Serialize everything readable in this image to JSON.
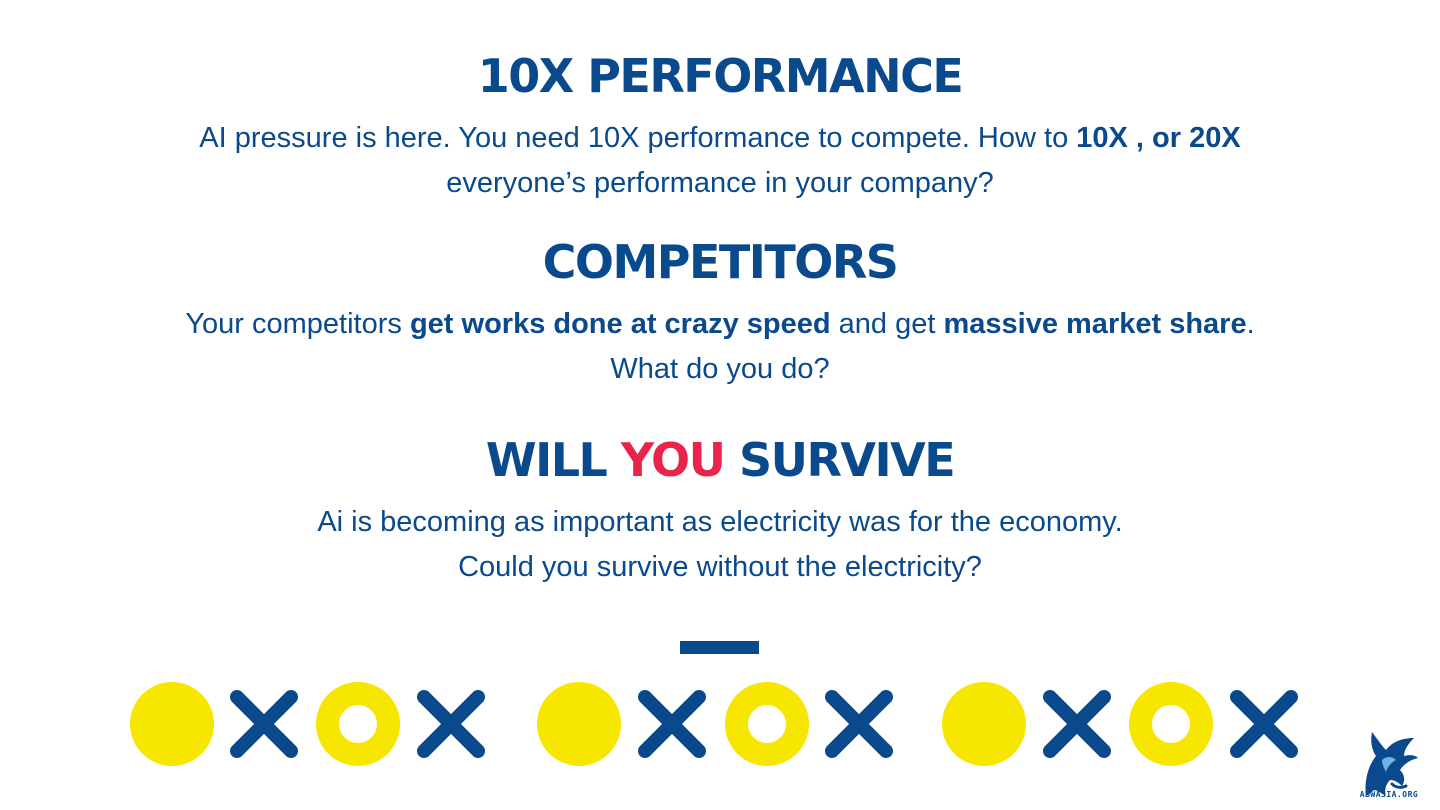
{
  "sections": [
    {
      "heading": "10X PERFORMANCE",
      "text_1": "AI pressure is here. You need 10X performance to compete. How to ",
      "bold_1": "10X , or 20X",
      "text_2": " everyone’s performance in your company?"
    },
    {
      "heading": "COMPETITORS",
      "text_1": "Your competitors ",
      "bold_1": "get works done at crazy speed",
      "text_2": " and get ",
      "bold_2": "massive market share",
      "text_3": ". What do you do?"
    },
    {
      "heading_part_1": "WILL ",
      "heading_part_2": "YOU",
      "heading_part_3": " SURVIVE",
      "line_1": "Ai is becoming as important as electricity was for the economy.",
      "line_2": "Could you survive without the electricity?"
    }
  ],
  "logo": {
    "text": "ABWASIA.ORG",
    "icon": "eagle-logo-icon"
  },
  "colors": {
    "primary": "#0a4a8c",
    "accent_red": "#e8244a",
    "accent_yellow": "#f7e600"
  }
}
